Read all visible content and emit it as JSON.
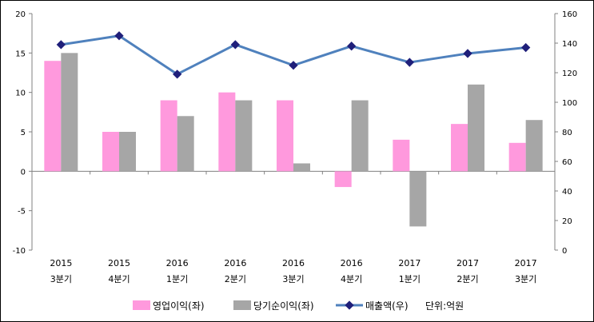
{
  "chart_data": {
    "type": "bar",
    "categories": [
      [
        "2015",
        "3분기"
      ],
      [
        "2015",
        "4분기"
      ],
      [
        "2016",
        "1분기"
      ],
      [
        "2016",
        "2분기"
      ],
      [
        "2016",
        "3분기"
      ],
      [
        "2016",
        "4분기"
      ],
      [
        "2017",
        "1분기"
      ],
      [
        "2017",
        "2분기"
      ],
      [
        "2017",
        "3분기"
      ]
    ],
    "series": [
      {
        "name": "영업이익(좌)",
        "type": "bar",
        "axis": "left",
        "color": "#ff99dd",
        "values": [
          14,
          5,
          9,
          10,
          9,
          -2,
          4,
          6,
          3.6
        ]
      },
      {
        "name": "당기순이익(좌)",
        "type": "bar",
        "axis": "left",
        "color": "#a6a6a6",
        "values": [
          15,
          5,
          7,
          9,
          1,
          9,
          -7,
          11,
          6.5
        ]
      },
      {
        "name": "매출액(우)",
        "type": "line",
        "axis": "right",
        "color": "#4f81bd",
        "marker_color": "#1f1f7a",
        "values": [
          139,
          145,
          119,
          139,
          125,
          138,
          127,
          133,
          137
        ]
      }
    ],
    "left_axis": {
      "ylim": [
        -10,
        20
      ],
      "ticks": [
        -10,
        -5,
        0,
        5,
        10,
        15,
        20
      ]
    },
    "right_axis": {
      "ylim": [
        0,
        160
      ],
      "ticks": [
        0,
        20,
        40,
        60,
        80,
        100,
        120,
        140,
        160
      ]
    },
    "unit_note": "단위:억원",
    "legend_position": "bottom",
    "grid": false
  }
}
